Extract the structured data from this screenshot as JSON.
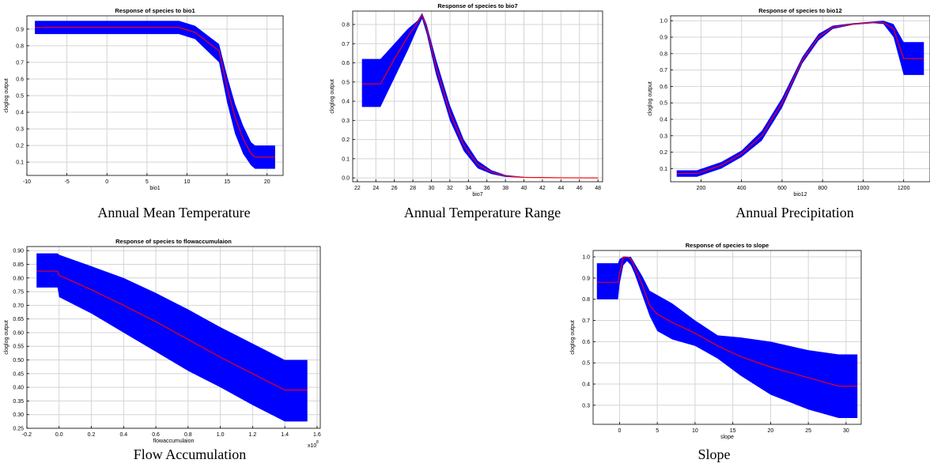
{
  "colors": {
    "band": "#0000ff",
    "line": "#ff0000",
    "grid": "#d4d4d4",
    "axis": "#000000"
  },
  "captions": {
    "p1": "Annual Mean Temperature",
    "p2": "Annual Temperature Range",
    "p3": "Annual Precipitation",
    "p4": "Flow Accumulation",
    "p5": "Slope"
  },
  "chart_data": [
    {
      "type": "area",
      "title": "Response of species to bio1",
      "xlabel": "bio1",
      "ylabel": "cloglog output",
      "xlim": [
        -10,
        22
      ],
      "ylim": [
        0.02,
        0.98
      ],
      "xticks": [
        -10,
        -5,
        0,
        5,
        10,
        15,
        20
      ],
      "yticks": [
        0.1,
        0.2,
        0.3,
        0.4,
        0.5,
        0.6,
        0.7,
        0.8,
        0.9
      ],
      "ytick_labels": [
        "0.1",
        "0.2",
        "0.3",
        "0.4",
        "0.5",
        "0.6",
        "0.7",
        "0.8",
        "0.9"
      ],
      "x_multiplier": "",
      "grid": true,
      "x": [
        -9,
        9,
        11,
        14,
        15,
        16,
        17,
        18,
        18.5,
        21
      ],
      "mean": [
        0.91,
        0.91,
        0.88,
        0.77,
        0.55,
        0.37,
        0.24,
        0.15,
        0.13,
        0.13
      ],
      "upper": [
        0.95,
        0.95,
        0.92,
        0.81,
        0.62,
        0.45,
        0.32,
        0.22,
        0.2,
        0.2
      ],
      "lower": [
        0.87,
        0.87,
        0.84,
        0.7,
        0.46,
        0.27,
        0.15,
        0.08,
        0.06,
        0.06
      ]
    },
    {
      "type": "area",
      "title": "Response of species to bio7",
      "xlabel": "bio7",
      "ylabel": "cloglog output",
      "xlim": [
        21.5,
        48.5
      ],
      "ylim": [
        -0.02,
        0.87
      ],
      "xticks": [
        22,
        24,
        26,
        28,
        30,
        32,
        34,
        36,
        38,
        40,
        42,
        44,
        46,
        48
      ],
      "yticks": [
        0,
        0.1,
        0.2,
        0.3,
        0.4,
        0.5,
        0.6,
        0.7,
        0.8
      ],
      "ytick_labels": [
        "0.0",
        "0.1",
        "0.2",
        "0.3",
        "0.4",
        "0.5",
        "0.6",
        "0.7",
        "0.8"
      ],
      "x_multiplier": "",
      "grid": true,
      "x": [
        22.5,
        24.5,
        26,
        27.5,
        28.5,
        29,
        29.5,
        30.5,
        32,
        33.5,
        35,
        36.5,
        38,
        40,
        44,
        48
      ],
      "mean": [
        0.49,
        0.49,
        0.62,
        0.74,
        0.81,
        0.85,
        0.78,
        0.58,
        0.34,
        0.17,
        0.07,
        0.03,
        0.01,
        0.003,
        0.001,
        0.0
      ],
      "upper": [
        0.62,
        0.62,
        0.7,
        0.78,
        0.82,
        0.86,
        0.8,
        0.62,
        0.38,
        0.2,
        0.09,
        0.04,
        0.015,
        0.005,
        0.002,
        0.001
      ],
      "lower": [
        0.37,
        0.37,
        0.52,
        0.67,
        0.78,
        0.83,
        0.75,
        0.54,
        0.3,
        0.14,
        0.05,
        0.02,
        0.005,
        0.001,
        0.0,
        0.0
      ]
    },
    {
      "type": "area",
      "title": "Response of species to bio12",
      "xlabel": "bio12",
      "ylabel": "cloglog output",
      "xlim": [
        50,
        1330
      ],
      "ylim": [
        0.02,
        1.03
      ],
      "xticks": [
        200,
        400,
        600,
        800,
        1000,
        1200
      ],
      "yticks": [
        0.1,
        0.2,
        0.3,
        0.4,
        0.5,
        0.6,
        0.7,
        0.8,
        0.9,
        1.0
      ],
      "ytick_labels": [
        "0.1",
        "0.2",
        "0.3",
        "0.4",
        "0.5",
        "0.6",
        "0.7",
        "0.8",
        "0.9",
        "1.0"
      ],
      "x_multiplier": "",
      "grid": true,
      "x": [
        80,
        180,
        300,
        400,
        500,
        600,
        700,
        780,
        850,
        950,
        1050,
        1100,
        1150,
        1200,
        1300
      ],
      "mean": [
        0.07,
        0.07,
        0.12,
        0.19,
        0.3,
        0.5,
        0.76,
        0.9,
        0.96,
        0.98,
        0.99,
        0.99,
        0.95,
        0.77,
        0.77
      ],
      "upper": [
        0.09,
        0.09,
        0.14,
        0.21,
        0.33,
        0.53,
        0.78,
        0.92,
        0.97,
        0.985,
        0.995,
        1.0,
        0.98,
        0.87,
        0.87
      ],
      "lower": [
        0.05,
        0.05,
        0.1,
        0.17,
        0.27,
        0.47,
        0.74,
        0.88,
        0.95,
        0.975,
        0.985,
        0.98,
        0.9,
        0.67,
        0.67
      ]
    },
    {
      "type": "area",
      "title": "Response of species to flowaccumulaion",
      "xlabel": "flowaccumulaion",
      "ylabel": "cloglog output",
      "xlim": [
        -0.2,
        1.62
      ],
      "ylim": [
        0.25,
        0.915
      ],
      "xticks": [
        -0.2,
        0,
        0.2,
        0.4,
        0.6,
        0.8,
        1.0,
        1.2,
        1.4,
        1.6
      ],
      "xtick_labels": [
        "-0.2",
        "0.0",
        "0.2",
        "0.4",
        "0.6",
        "0.8",
        "1.0",
        "1.2",
        "1.4",
        "1.6"
      ],
      "yticks": [
        0.25,
        0.3,
        0.35,
        0.4,
        0.45,
        0.5,
        0.55,
        0.6,
        0.65,
        0.7,
        0.75,
        0.8,
        0.85,
        0.9
      ],
      "ytick_labels": [
        "0.25",
        "0.30",
        "0.35",
        "0.40",
        "0.45",
        "0.50",
        "0.55",
        "0.60",
        "0.65",
        "0.70",
        "0.75",
        "0.80",
        "0.85",
        "0.90"
      ],
      "x_multiplier": "x10",
      "x_multiplier_exp": "8",
      "grid": true,
      "x": [
        -0.14,
        -0.01,
        0.0,
        0.2,
        0.4,
        0.6,
        0.8,
        1.0,
        1.2,
        1.4,
        1.54
      ],
      "mean": [
        0.825,
        0.825,
        0.81,
        0.757,
        0.7,
        0.64,
        0.575,
        0.51,
        0.45,
        0.39,
        0.39
      ],
      "upper": [
        0.89,
        0.89,
        0.885,
        0.843,
        0.8,
        0.745,
        0.685,
        0.62,
        0.56,
        0.5,
        0.5
      ],
      "lower": [
        0.765,
        0.765,
        0.73,
        0.67,
        0.6,
        0.53,
        0.46,
        0.4,
        0.335,
        0.275,
        0.275
      ]
    },
    {
      "type": "area",
      "title": "Response of species to slope",
      "xlabel": "slope",
      "ylabel": "cloglog output",
      "xlim": [
        -3.5,
        32
      ],
      "ylim": [
        0.21,
        1.03
      ],
      "xticks": [
        0,
        5,
        10,
        15,
        20,
        25,
        30
      ],
      "yticks": [
        0.3,
        0.4,
        0.5,
        0.6,
        0.7,
        0.8,
        0.9,
        1.0
      ],
      "ytick_labels": [
        "0.3",
        "0.4",
        "0.5",
        "0.6",
        "0.7",
        "0.8",
        "0.9",
        "1.0"
      ],
      "x_multiplier": "",
      "grid": true,
      "x": [
        -3,
        -0.2,
        0,
        0.5,
        1,
        1.5,
        2,
        3,
        4,
        5,
        7,
        10,
        13,
        16,
        20,
        25,
        29,
        31.5
      ],
      "mean": [
        0.88,
        0.88,
        0.92,
        1.0,
        1.0,
        0.99,
        0.95,
        0.87,
        0.77,
        0.73,
        0.69,
        0.64,
        0.58,
        0.53,
        0.48,
        0.43,
        0.39,
        0.39
      ],
      "upper": [
        0.97,
        0.97,
        0.99,
        1.0,
        1.0,
        1.0,
        0.97,
        0.91,
        0.84,
        0.82,
        0.78,
        0.7,
        0.63,
        0.62,
        0.6,
        0.56,
        0.54,
        0.54
      ],
      "lower": [
        0.8,
        0.8,
        0.87,
        0.96,
        0.98,
        0.96,
        0.92,
        0.82,
        0.72,
        0.65,
        0.61,
        0.58,
        0.52,
        0.44,
        0.35,
        0.28,
        0.24,
        0.24
      ]
    }
  ]
}
